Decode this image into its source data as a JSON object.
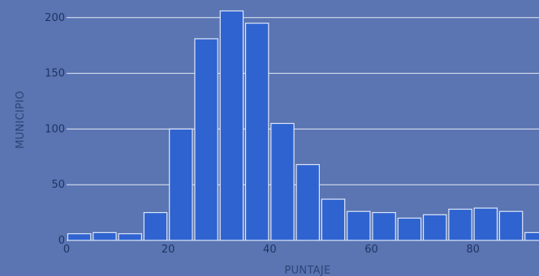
{
  "chart_data": {
    "type": "bar",
    "title": "",
    "xlabel": "PUNTAJE",
    "ylabel": "MUNICIPIO",
    "bin_width": 5,
    "x": [
      2.5,
      7.5,
      12.5,
      17.5,
      22.5,
      27.5,
      32.5,
      37.5,
      42.5,
      47.5,
      52.5,
      57.5,
      62.5,
      67.5,
      72.5,
      77.5,
      82.5,
      87.5,
      92.5
    ],
    "values": [
      6,
      7,
      6,
      25,
      100,
      181,
      206,
      195,
      105,
      68,
      37,
      26,
      25,
      20,
      23,
      28,
      29,
      26,
      7
    ],
    "xlim": [
      0,
      93
    ],
    "ylim": [
      0,
      210
    ],
    "xticks": [
      0,
      20,
      40,
      60,
      80
    ],
    "yticks": [
      0,
      50,
      100,
      150,
      200
    ],
    "grid": true,
    "colors": {
      "background": "#5a75b2",
      "bar_fill": "#2f63d0",
      "bar_stroke": "#dde6fa",
      "grid": "#ffffff",
      "tick_text": "#1f3463",
      "axis_title": "#2d4577"
    }
  }
}
